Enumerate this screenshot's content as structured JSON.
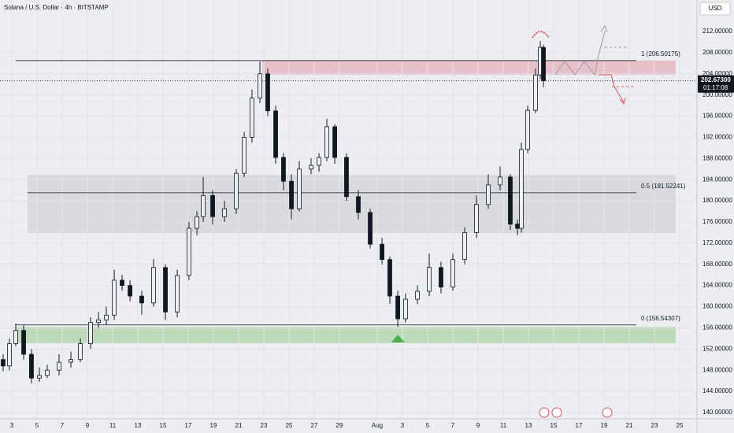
{
  "chart_data": {
    "type": "candlestick",
    "title": "Solana / U.S. Dollar · 4h · BITSTAMP",
    "currency": "USD",
    "color": "#131722",
    "grid": true,
    "x": [
      -0.69,
      -0.19,
      0.31,
      0.94,
      1.56,
      2.19,
      2.81,
      3.75,
      4.69,
      5.44,
      6.25,
      6.88,
      7.5,
      8.13,
      8.75,
      9.38,
      10.31,
      11.25,
      12.19,
      13.13,
      14.06,
      14.69,
      15.19,
      15.94,
      16.88,
      17.81,
      18.44,
      19.06,
      19.69,
      20.31,
      20.94,
      21.56,
      22.19,
      22.81,
      23.75,
      24.38,
      25,
      25.63,
      26.56,
      27.5,
      28.44,
      29.38,
      30,
      30.63,
      31.25,
      32.19,
      33.13,
      34.06,
      35,
      35.94,
      36.88,
      37.81,
      38.75,
      39.56,
      40.13,
      40.44,
      40.94,
      41.56,
      41.94,
      42.19
    ],
    "open": [
      150,
      148.8,
      153,
      155.5,
      151,
      146.5,
      147,
      148,
      149.5,
      150,
      153,
      157,
      157.5,
      158.4,
      165,
      164,
      162,
      160.7,
      167.4,
      159,
      165.9,
      174.8,
      177,
      181,
      177,
      178.5,
      185.2,
      192,
      199.4,
      204,
      197,
      188.2,
      183.7,
      178.5,
      186,
      186.7,
      188.2,
      194,
      188.2,
      180.8,
      177.8,
      171.8,
      168.9,
      162,
      157.7,
      161.4,
      162.9,
      167.4,
      163.7,
      168.9,
      174,
      179.3,
      183,
      184.5,
      175.6,
      174.8,
      189.7,
      197.1,
      203.8,
      209
    ],
    "high": [
      151,
      154,
      156.8,
      156.5,
      152,
      148.5,
      149,
      151,
      151.5,
      154,
      158,
      159,
      160,
      167,
      166,
      165,
      163,
      169,
      168,
      167,
      176,
      178,
      184.5,
      182,
      180,
      186,
      193,
      201,
      206.3,
      205,
      198,
      189,
      185,
      187.5,
      188,
      189,
      195.5,
      194.5,
      189,
      182,
      178.5,
      173,
      169.5,
      163,
      162.5,
      164,
      170,
      168.5,
      170,
      175,
      181,
      185,
      186.5,
      185,
      176.5,
      191,
      198,
      205,
      210.2,
      209.5
    ],
    "low": [
      147.8,
      148,
      152.5,
      150,
      145.5,
      145.8,
      146.5,
      147,
      148.5,
      149.5,
      152,
      156,
      156.5,
      157.5,
      163,
      161,
      158.5,
      160,
      157.5,
      158,
      165,
      173.5,
      176,
      175.5,
      176,
      177.5,
      184.5,
      191,
      198.5,
      196,
      187,
      182,
      176.5,
      178,
      185,
      185.5,
      187.5,
      187,
      180,
      176.5,
      171,
      168,
      160.5,
      156.2,
      157,
      160.5,
      162,
      162.5,
      163,
      168,
      173,
      178.5,
      182,
      174.5,
      173.5,
      174,
      189,
      196.5,
      203,
      201.5
    ],
    "close": [
      148.8,
      153,
      155.5,
      151,
      146.5,
      147,
      148,
      149.5,
      150,
      153,
      157,
      157.5,
      158.4,
      165,
      164,
      162,
      160.7,
      167.4,
      159,
      165.9,
      174.8,
      177,
      181,
      177,
      178.5,
      185.2,
      192,
      199.4,
      204,
      197,
      188.2,
      183.7,
      178.5,
      186,
      186.7,
      188.2,
      194,
      188.2,
      180.8,
      177.8,
      171.8,
      168.9,
      162,
      157.7,
      161.4,
      162.9,
      167.4,
      163.7,
      168.9,
      174,
      179.3,
      183,
      184.5,
      175.6,
      174.8,
      189.7,
      197.1,
      203.8,
      209,
      202.7
    ],
    "xlim": [
      -0.9375,
      54.375
    ],
    "xticks": [
      {
        "value": 0,
        "label": "3"
      },
      {
        "value": 2,
        "label": "5"
      },
      {
        "value": 4,
        "label": "7"
      },
      {
        "value": 6,
        "label": "9"
      },
      {
        "value": 8,
        "label": "11"
      },
      {
        "value": 10,
        "label": "13"
      },
      {
        "value": 12,
        "label": "15"
      },
      {
        "value": 14,
        "label": "17"
      },
      {
        "value": 16,
        "label": "19"
      },
      {
        "value": 18,
        "label": "21"
      },
      {
        "value": 20,
        "label": "23"
      },
      {
        "value": 22,
        "label": "25"
      },
      {
        "value": 24,
        "label": "27"
      },
      {
        "value": 26,
        "label": "29"
      },
      {
        "value": 29,
        "label": "Aug"
      },
      {
        "value": 31,
        "label": "3"
      },
      {
        "value": 33,
        "label": "5"
      },
      {
        "value": 35,
        "label": "7"
      },
      {
        "value": 37,
        "label": "9"
      },
      {
        "value": 39,
        "label": "11"
      },
      {
        "value": 41,
        "label": "13"
      },
      {
        "value": 43,
        "label": "15"
      },
      {
        "value": 45,
        "label": "17"
      },
      {
        "value": 47,
        "label": "19"
      },
      {
        "value": 49,
        "label": "21"
      },
      {
        "value": 51,
        "label": "23"
      },
      {
        "value": 53,
        "label": "25"
      }
    ],
    "ylim": [
      138.8,
      217.95
    ],
    "yticks": [
      {
        "value": 140,
        "label": "140.00000"
      },
      {
        "value": 144,
        "label": "144.00000"
      },
      {
        "value": 148,
        "label": "148.00000"
      },
      {
        "value": 152,
        "label": "152.00000"
      },
      {
        "value": 156,
        "label": "156.00000"
      },
      {
        "value": 160,
        "label": "160.00000"
      },
      {
        "value": 164,
        "label": "164.00000"
      },
      {
        "value": 168,
        "label": "168.00000"
      },
      {
        "value": 172,
        "label": "172.00000"
      },
      {
        "value": 176,
        "label": "176.00000"
      },
      {
        "value": 180,
        "label": "180.00000"
      },
      {
        "value": 184,
        "label": "184.00000"
      },
      {
        "value": 188,
        "label": "188.00000"
      },
      {
        "value": 192,
        "label": "192.00000"
      },
      {
        "value": 196,
        "label": "196.00000"
      },
      {
        "value": 200,
        "label": "200.00000"
      },
      {
        "value": 204,
        "label": "204.00000"
      },
      {
        "value": 208,
        "label": "208.00000"
      },
      {
        "value": 212,
        "label": "212.00000"
      }
    ],
    "levels": [
      {
        "value": 206.50175,
        "label": "1 (206.50175)"
      },
      {
        "value": 181.52241,
        "label": "0.5 (181.52241)"
      },
      {
        "value": 156.54307,
        "label": "0 (156.54307)"
      }
    ],
    "zones": [
      {
        "from": 203.8,
        "to": 206.5,
        "color": "#e8b7c2"
      },
      {
        "from": 173.9,
        "to": 184.9,
        "color": "#d5d6db"
      },
      {
        "from": 153.1,
        "to": 156.2,
        "color": "#b5d7b1"
      }
    ],
    "last_price": {
      "value": 202.673,
      "label": "202.67300"
    },
    "countdown": "01:17:08"
  }
}
